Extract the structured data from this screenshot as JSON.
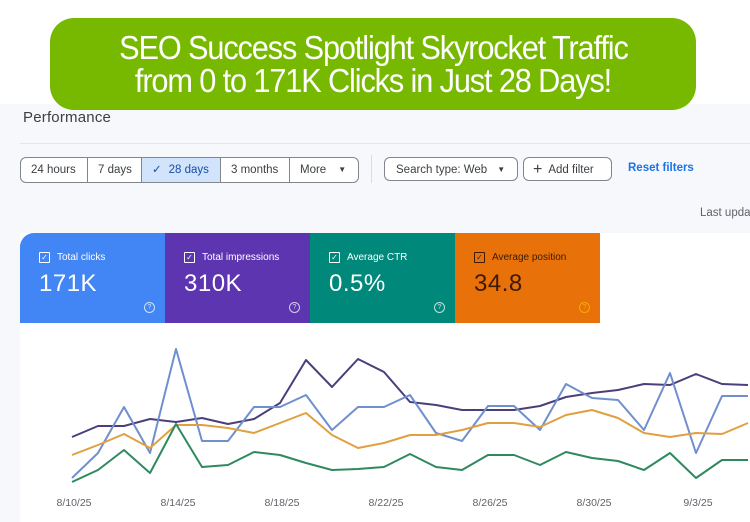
{
  "banner": {
    "line1": "SEO Success Spotlight Skyrocket Traffic",
    "line2": "from 0 to 171K Clicks in Just 28 Days!",
    "color": "#76b900"
  },
  "page": {
    "title": "Performance",
    "last_updated": "Last upda"
  },
  "date_range": {
    "options": [
      {
        "label": "24 hours",
        "active": false
      },
      {
        "label": "7 days",
        "active": false
      },
      {
        "label": "28 days",
        "active": true,
        "icon": "check-icon"
      },
      {
        "label": "3 months",
        "active": false
      },
      {
        "label": "More",
        "active": false,
        "icon": "caret-down-icon"
      }
    ]
  },
  "filters": {
    "search_type": "Search type: Web",
    "add_filter": "Add filter",
    "reset": "Reset filters"
  },
  "metrics": [
    {
      "key": "clicks",
      "label": "Total clicks",
      "value": "171K",
      "color": "#4285f4",
      "checked": true
    },
    {
      "key": "impressions",
      "label": "Total impressions",
      "value": "310K",
      "color": "#5e35b1",
      "checked": true
    },
    {
      "key": "ctr",
      "label": "Average CTR",
      "value": "0.5%",
      "color": "#00897b",
      "checked": true
    },
    {
      "key": "position",
      "label": "Average position",
      "value": "34.8",
      "color": "#e8710a",
      "checked": true
    }
  ],
  "chart_data": {
    "type": "line",
    "title": "",
    "xlabel": "",
    "ylabel": "",
    "x_tick_labels": [
      "8/10/25",
      "8/14/25",
      "8/18/25",
      "8/22/25",
      "8/26/25",
      "8/30/25",
      "9/3/25"
    ],
    "x": [
      "8/10",
      "8/11",
      "8/12",
      "8/13",
      "8/14",
      "8/15",
      "8/16",
      "8/17",
      "8/18",
      "8/19",
      "8/20",
      "8/21",
      "8/22",
      "8/23",
      "8/24",
      "8/25",
      "8/26",
      "8/27",
      "8/28",
      "8/29",
      "8/30",
      "8/31",
      "9/1",
      "9/2",
      "9/3",
      "9/4",
      "9/5"
    ],
    "grid": false,
    "legend": "metric cards above chart",
    "series": [
      {
        "name": "Total impressions",
        "color": "#4a3f7a",
        "values": [
          437,
          426,
          426,
          419,
          422,
          418,
          424,
          419,
          403,
          360,
          387,
          359,
          372,
          402,
          405,
          410,
          410,
          410,
          406,
          397,
          393,
          390,
          384,
          385,
          374,
          384,
          385
        ]
      },
      {
        "name": "Total clicks",
        "color": "#6f8fcf",
        "values": [
          478,
          453,
          407,
          453,
          349,
          441,
          441,
          407,
          407,
          395,
          430,
          407,
          407,
          395,
          433,
          441,
          406,
          406,
          430,
          384,
          398,
          400,
          430,
          373,
          453,
          396,
          396
        ]
      },
      {
        "name": "Average position",
        "color": "#e0a040",
        "values": [
          455,
          445,
          434,
          448,
          425,
          425,
          428,
          433,
          423,
          413,
          435,
          448,
          443,
          435,
          435,
          430,
          423,
          423,
          427,
          415,
          410,
          418,
          433,
          437,
          433,
          434,
          423
        ]
      },
      {
        "name": "Average CTR",
        "color": "#2e8a5e",
        "values": [
          482,
          470,
          450,
          473,
          424,
          467,
          465,
          452,
          455,
          463,
          470,
          469,
          467,
          454,
          467,
          470,
          455,
          455,
          465,
          452,
          458,
          461,
          470,
          453,
          478,
          460,
          460
        ]
      }
    ],
    "note": "values are pixel y-positions traced from plot (smaller = higher on chart); no y-axis shown"
  }
}
